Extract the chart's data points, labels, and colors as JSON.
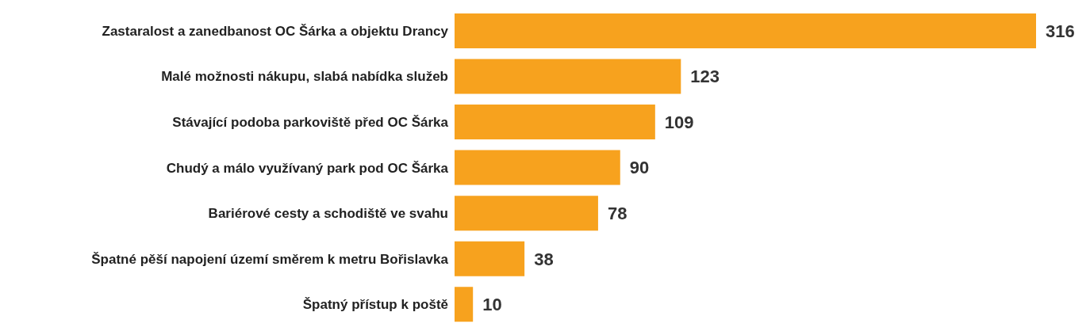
{
  "chart_data": {
    "type": "bar",
    "orientation": "horizontal",
    "categories": [
      "Zastaralost a zanedbanost OC Šárka a objektu Drancy",
      "Malé možnosti nákupu, slabá nabídka služeb",
      "Stávající podoba parkoviště před OC Šárka",
      "Chudý a málo využívaný park pod  OC Šárka",
      "Bariérové cesty a schodiště ve svahu",
      "Špatné pěší napojení území směrem k metru Bořislavka",
      "Špatný přístup k poště"
    ],
    "values": [
      316,
      123,
      109,
      90,
      78,
      38,
      10
    ],
    "color": "#f7a21e",
    "data_labels": true,
    "grid": false,
    "legend": false
  }
}
